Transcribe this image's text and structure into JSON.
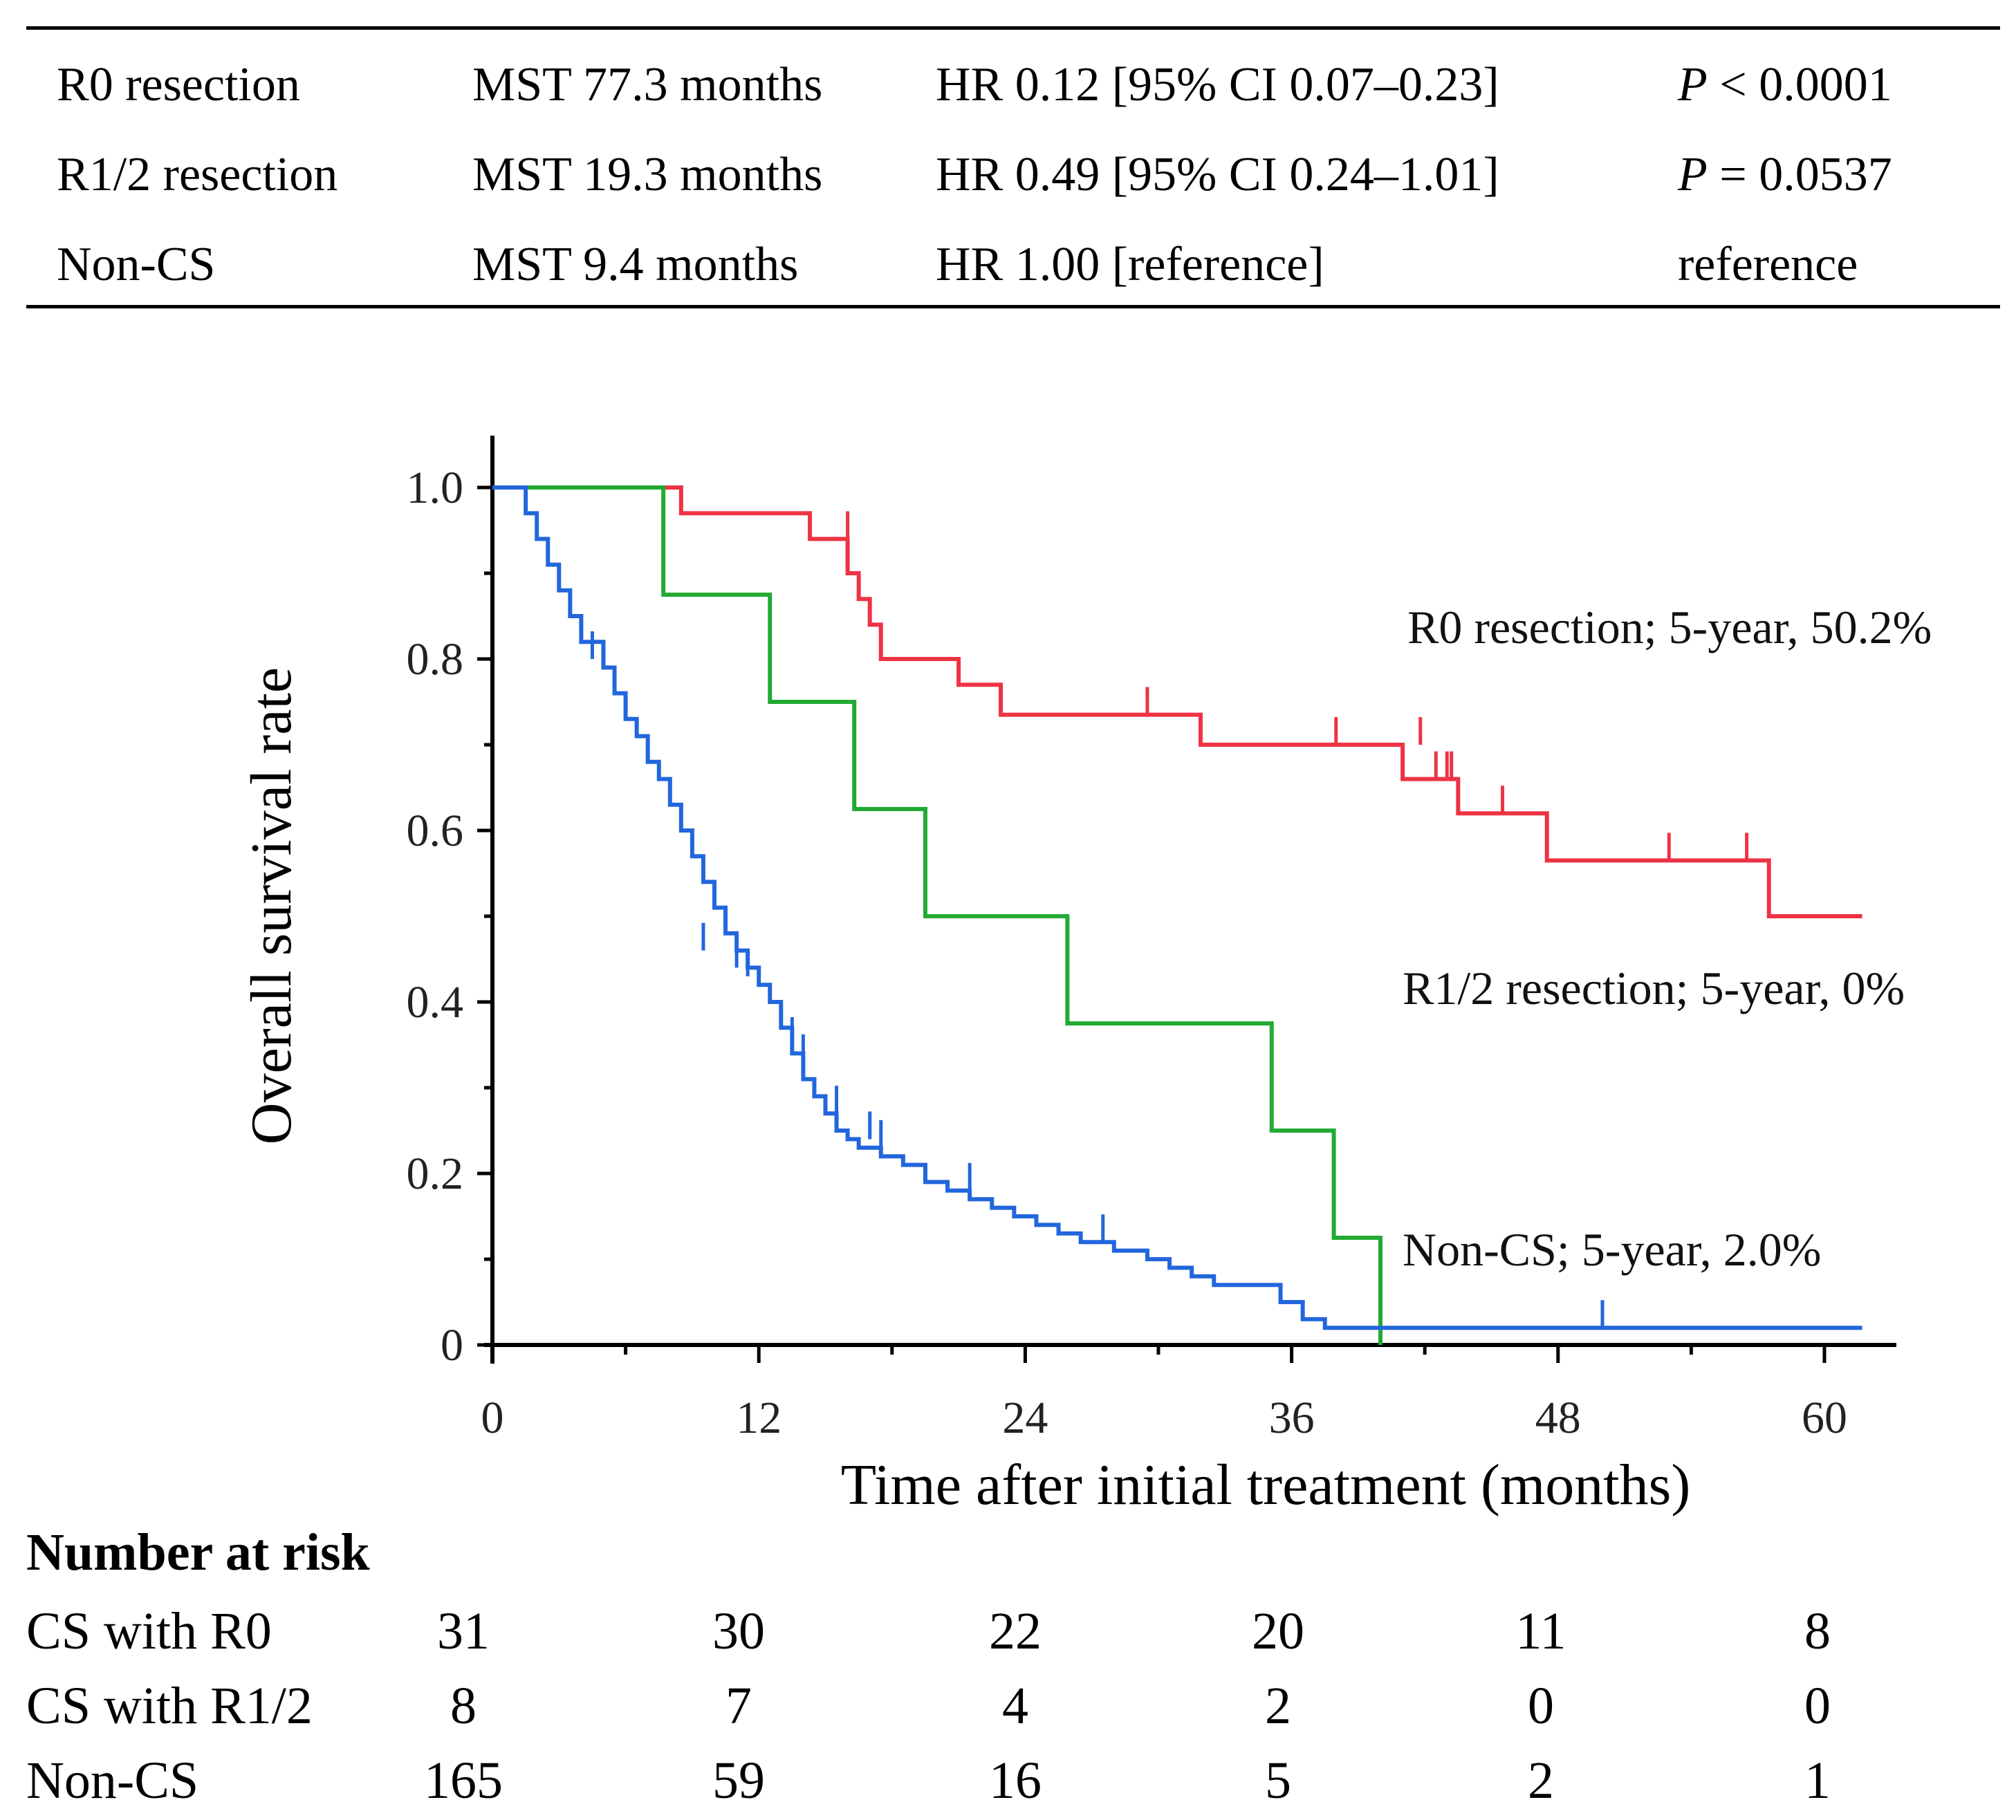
{
  "summary_table": {
    "rows": [
      {
        "group": "R0 resection",
        "mst": "MST 77.3 months",
        "hr": "HR 0.12 [95% CI 0.07–0.23]",
        "p_sym": "P",
        "p_rest": " < 0.0001",
        "p_plain": ""
      },
      {
        "group": "R1/2 resection",
        "mst": "MST 19.3 months",
        "hr": "HR 0.49 [95% CI 0.24–1.01]",
        "p_sym": "P",
        "p_rest": " = 0.0537",
        "p_plain": ""
      },
      {
        "group": "Non-CS",
        "mst": "MST 9.4 months",
        "hr": "HR 1.00 [reference]",
        "p_sym": "",
        "p_rest": "",
        "p_plain": "reference"
      }
    ]
  },
  "chart_data": {
    "type": "line",
    "subtype": "kaplan-meier step",
    "title": "",
    "xlabel": "Time after initial treatment (months)",
    "ylabel": "Overall survival rate",
    "xlim": [
      0,
      62
    ],
    "ylim": [
      0,
      1.0
    ],
    "xticks": [
      0,
      12,
      24,
      36,
      48,
      60
    ],
    "xtick_labels": [
      "0",
      "12",
      "24",
      "36",
      "48",
      "60"
    ],
    "yticks": [
      0,
      0.2,
      0.4,
      0.6,
      0.8,
      1.0
    ],
    "ytick_labels": [
      "0",
      "0.2",
      "0.4",
      "0.6",
      "0.8",
      "1.0"
    ],
    "series": [
      {
        "name": "R0 resection",
        "annotation": "R0 resection; 5-year, 50.2%",
        "color": "#ee3344",
        "steps": [
          [
            0,
            1.0
          ],
          [
            8.5,
            0.97
          ],
          [
            14.3,
            0.94
          ],
          [
            16,
            0.9
          ],
          [
            16.5,
            0.87
          ],
          [
            17,
            0.84
          ],
          [
            17.5,
            0.8
          ],
          [
            21,
            0.77
          ],
          [
            22.9,
            0.735
          ],
          [
            31.9,
            0.7
          ],
          [
            41,
            0.66
          ],
          [
            43.5,
            0.62
          ],
          [
            47.5,
            0.565
          ],
          [
            57.5,
            0.5
          ],
          [
            61.7,
            0.5
          ]
        ],
        "censors": [
          [
            16,
            0.94
          ],
          [
            29.5,
            0.735
          ],
          [
            38,
            0.7
          ],
          [
            41.8,
            0.7
          ],
          [
            42.5,
            0.66
          ],
          [
            43,
            0.66
          ],
          [
            43.2,
            0.66
          ],
          [
            45.5,
            0.62
          ],
          [
            53,
            0.565
          ],
          [
            56.5,
            0.565
          ]
        ]
      },
      {
        "name": "R1/2 resection",
        "annotation": "R1/2 resection; 5-year, 0%",
        "color": "#22aa33",
        "steps": [
          [
            0,
            1.0
          ],
          [
            7.7,
            0.875
          ],
          [
            12.5,
            0.75
          ],
          [
            16.3,
            0.625
          ],
          [
            19.5,
            0.5
          ],
          [
            25.9,
            0.375
          ],
          [
            35.1,
            0.25
          ],
          [
            37.9,
            0.125
          ],
          [
            40,
            0.0
          ]
        ],
        "censors": []
      },
      {
        "name": "Non-CS",
        "annotation": "Non-CS; 5-year, 2.0%",
        "color": "#2266dd",
        "steps": [
          [
            0,
            1.0
          ],
          [
            1.5,
            0.97
          ],
          [
            2,
            0.94
          ],
          [
            2.5,
            0.91
          ],
          [
            3,
            0.88
          ],
          [
            3.5,
            0.85
          ],
          [
            4,
            0.82
          ],
          [
            5,
            0.79
          ],
          [
            5.5,
            0.76
          ],
          [
            6,
            0.73
          ],
          [
            6.5,
            0.71
          ],
          [
            7,
            0.68
          ],
          [
            7.5,
            0.66
          ],
          [
            8,
            0.63
          ],
          [
            8.5,
            0.6
          ],
          [
            9,
            0.57
          ],
          [
            9.5,
            0.54
          ],
          [
            10,
            0.51
          ],
          [
            10.5,
            0.48
          ],
          [
            11,
            0.46
          ],
          [
            11.5,
            0.44
          ],
          [
            12,
            0.42
          ],
          [
            12.5,
            0.4
          ],
          [
            13,
            0.37
          ],
          [
            13.5,
            0.34
          ],
          [
            14,
            0.31
          ],
          [
            14.5,
            0.29
          ],
          [
            15,
            0.27
          ],
          [
            15.5,
            0.25
          ],
          [
            16,
            0.24
          ],
          [
            16.5,
            0.23
          ],
          [
            17.5,
            0.22
          ],
          [
            18.5,
            0.21
          ],
          [
            19.5,
            0.19
          ],
          [
            20.5,
            0.18
          ],
          [
            21.5,
            0.17
          ],
          [
            22.5,
            0.16
          ],
          [
            23.5,
            0.15
          ],
          [
            24.5,
            0.14
          ],
          [
            25.5,
            0.13
          ],
          [
            26.5,
            0.12
          ],
          [
            28,
            0.11
          ],
          [
            29.5,
            0.1
          ],
          [
            30.5,
            0.09
          ],
          [
            31.5,
            0.08
          ],
          [
            32.5,
            0.07
          ],
          [
            35.5,
            0.05
          ],
          [
            36.5,
            0.03
          ],
          [
            37.5,
            0.02
          ],
          [
            61.7,
            0.02
          ]
        ],
        "censors": [
          [
            3.5,
            0.85
          ],
          [
            4,
            0.82
          ],
          [
            4.5,
            0.8
          ],
          [
            6,
            0.73
          ],
          [
            9.5,
            0.46
          ],
          [
            11,
            0.44
          ],
          [
            11.5,
            0.43
          ],
          [
            13.5,
            0.35
          ],
          [
            14,
            0.33
          ],
          [
            15.5,
            0.27
          ],
          [
            17,
            0.24
          ],
          [
            17.5,
            0.23
          ],
          [
            21.5,
            0.18
          ],
          [
            27.5,
            0.12
          ],
          [
            50,
            0.02
          ]
        ]
      }
    ]
  },
  "risk_table": {
    "title": "Number at risk",
    "times": [
      "0",
      "12",
      "24",
      "36",
      "48",
      "60"
    ],
    "rows": [
      {
        "label": "CS with R0",
        "values": [
          "31",
          "30",
          "22",
          "20",
          "11",
          "8"
        ]
      },
      {
        "label": "CS with R1/2",
        "values": [
          "8",
          "7",
          "4",
          "2",
          "0",
          "0"
        ]
      },
      {
        "label": "Non-CS",
        "values": [
          "165",
          "59",
          "16",
          "5",
          "2",
          "1"
        ]
      }
    ]
  }
}
